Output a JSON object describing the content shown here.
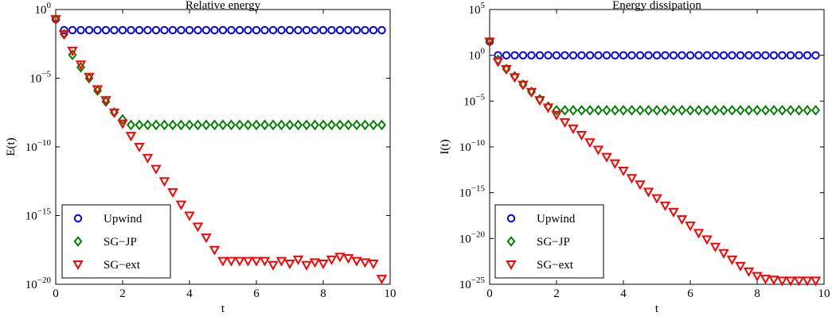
{
  "chart_data": [
    {
      "type": "scatter",
      "title": "Relative energy",
      "xlabel": "t",
      "ylabel": "E(t)",
      "xlim": [
        0,
        10
      ],
      "ylim_log10": [
        -20,
        0
      ],
      "yscale": "log",
      "x_ticks": [
        "0",
        "2",
        "4",
        "6",
        "8",
        "10"
      ],
      "y_ticks": [
        {
          "base": "10",
          "exp": "0"
        },
        {
          "base": "10",
          "exp": "−5"
        },
        {
          "base": "10",
          "exp": "−10"
        },
        {
          "base": "10",
          "exp": "−15"
        },
        {
          "base": "10",
          "exp": "−20"
        }
      ],
      "legend_position": "bottom-left",
      "x": [
        0,
        0.25,
        0.5,
        0.75,
        1,
        1.25,
        1.5,
        1.75,
        2,
        2.25,
        2.5,
        2.75,
        3,
        3.25,
        3.5,
        3.75,
        4,
        4.25,
        4.5,
        4.75,
        5,
        5.25,
        5.5,
        5.75,
        6,
        6.25,
        6.5,
        6.75,
        7,
        7.25,
        7.5,
        7.75,
        8,
        8.25,
        8.5,
        8.75,
        9,
        9.25,
        9.5,
        9.75
      ],
      "series": [
        {
          "name": "Upwind",
          "marker": "circle",
          "color": "#0000ff",
          "log10_values": [
            -0.7,
            -1.5,
            -1.5,
            -1.5,
            -1.5,
            -1.5,
            -1.5,
            -1.5,
            -1.5,
            -1.5,
            -1.5,
            -1.5,
            -1.5,
            -1.5,
            -1.5,
            -1.5,
            -1.5,
            -1.5,
            -1.5,
            -1.5,
            -1.5,
            -1.5,
            -1.5,
            -1.5,
            -1.5,
            -1.5,
            -1.5,
            -1.5,
            -1.5,
            -1.5,
            -1.5,
            -1.5,
            -1.5,
            -1.5,
            -1.5,
            -1.5,
            -1.5,
            -1.5,
            -1.5,
            -1.5
          ]
        },
        {
          "name": "SG−JP",
          "marker": "diamond",
          "color": "#008000",
          "log10_values": [
            -0.7,
            -1.8,
            -3.3,
            -4.2,
            -5.0,
            -5.9,
            -6.7,
            -7.5,
            -8.0,
            -8.4,
            -8.4,
            -8.4,
            -8.4,
            -8.4,
            -8.4,
            -8.4,
            -8.4,
            -8.4,
            -8.4,
            -8.4,
            -8.4,
            -8.4,
            -8.4,
            -8.4,
            -8.4,
            -8.4,
            -8.4,
            -8.4,
            -8.4,
            -8.4,
            -8.4,
            -8.4,
            -8.4,
            -8.4,
            -8.4,
            -8.4,
            -8.4,
            -8.4,
            -8.4,
            -8.4
          ]
        },
        {
          "name": "SG−ext",
          "marker": "triangle-down",
          "color": "#ff0000",
          "log10_values": [
            -0.7,
            -1.8,
            -3.0,
            -4.0,
            -4.9,
            -5.8,
            -6.6,
            -7.5,
            -8.3,
            -9.2,
            -10.0,
            -10.8,
            -11.6,
            -12.5,
            -13.3,
            -14.2,
            -15.0,
            -15.8,
            -16.6,
            -17.5,
            -18.3,
            -18.3,
            -18.3,
            -18.3,
            -18.3,
            -18.3,
            -18.6,
            -18.3,
            -18.5,
            -18.2,
            -18.6,
            -18.4,
            -18.5,
            -18.2,
            -18.0,
            -18.1,
            -18.3,
            -18.4,
            -18.5,
            -19.6
          ]
        }
      ],
      "grid": false
    },
    {
      "type": "scatter",
      "title": "Energy dissipation",
      "xlabel": "t",
      "ylabel": "I(t)",
      "xlim": [
        0,
        10
      ],
      "ylim_log10": [
        -25,
        5
      ],
      "yscale": "log",
      "x_ticks": [
        "0",
        "2",
        "4",
        "6",
        "8",
        "10"
      ],
      "y_ticks": [
        {
          "base": "10",
          "exp": "5"
        },
        {
          "base": "10",
          "exp": "0"
        },
        {
          "base": "10",
          "exp": "−5"
        },
        {
          "base": "10",
          "exp": "−10"
        },
        {
          "base": "10",
          "exp": "−15"
        },
        {
          "base": "10",
          "exp": "−20"
        },
        {
          "base": "10",
          "exp": "−25"
        }
      ],
      "legend_position": "bottom-left",
      "x": [
        0,
        0.25,
        0.5,
        0.75,
        1,
        1.25,
        1.5,
        1.75,
        2,
        2.25,
        2.5,
        2.75,
        3,
        3.25,
        3.5,
        3.75,
        4,
        4.25,
        4.5,
        4.75,
        5,
        5.25,
        5.5,
        5.75,
        6,
        6.25,
        6.5,
        6.75,
        7,
        7.25,
        7.5,
        7.75,
        8,
        8.25,
        8.5,
        8.75,
        9,
        9.25,
        9.5,
        9.75
      ],
      "series": [
        {
          "name": "Upwind",
          "marker": "circle",
          "color": "#0000ff",
          "log10_values": [
            1.5,
            0.0,
            0.0,
            0.0,
            0.0,
            0.0,
            0.0,
            0.0,
            0.0,
            0.0,
            0.0,
            0.0,
            0.0,
            0.0,
            0.0,
            0.0,
            0.0,
            0.0,
            0.0,
            0.0,
            0.0,
            0.0,
            0.0,
            0.0,
            0.0,
            0.0,
            0.0,
            0.0,
            0.0,
            0.0,
            0.0,
            0.0,
            0.0,
            0.0,
            0.0,
            0.0,
            0.0,
            0.0,
            0.0,
            0.0
          ]
        },
        {
          "name": "SG−JP",
          "marker": "diamond",
          "color": "#008000",
          "log10_values": [
            1.5,
            -0.5,
            -1.5,
            -2.3,
            -3.2,
            -4.0,
            -4.8,
            -5.6,
            -6.0,
            -6.0,
            -6.0,
            -6.0,
            -6.0,
            -6.0,
            -6.0,
            -6.0,
            -6.0,
            -6.0,
            -6.0,
            -6.0,
            -6.0,
            -6.0,
            -6.0,
            -6.0,
            -6.0,
            -6.0,
            -6.0,
            -6.0,
            -6.0,
            -6.0,
            -6.0,
            -6.0,
            -6.0,
            -6.0,
            -6.0,
            -6.0,
            -6.0,
            -6.0,
            -6.0,
            -6.0
          ]
        },
        {
          "name": "SG−ext",
          "marker": "triangle-down",
          "color": "#ff0000",
          "log10_values": [
            1.5,
            -0.7,
            -1.5,
            -2.4,
            -3.2,
            -4.0,
            -4.9,
            -5.7,
            -6.5,
            -7.3,
            -8.0,
            -8.7,
            -9.5,
            -10.3,
            -11.1,
            -11.8,
            -12.6,
            -13.4,
            -14.1,
            -14.9,
            -15.6,
            -16.4,
            -17.1,
            -17.9,
            -18.6,
            -19.4,
            -20.1,
            -20.9,
            -21.6,
            -22.3,
            -23.0,
            -23.6,
            -24.1,
            -24.4,
            -24.5,
            -24.6,
            -24.6,
            -24.6,
            -24.6,
            -24.6
          ]
        }
      ],
      "grid": false
    }
  ]
}
